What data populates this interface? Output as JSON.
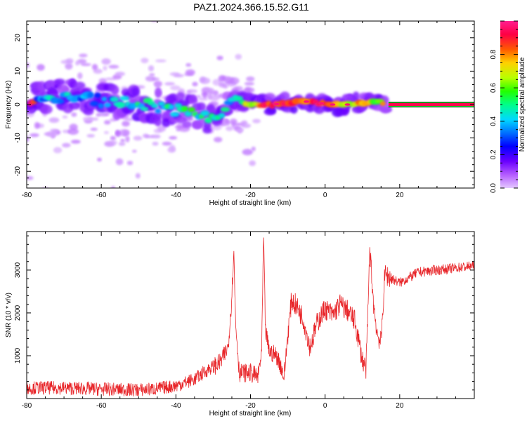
{
  "title": "PAZ1.2024.366.15.52.G11",
  "colors": {
    "trace": "#e8262a",
    "spec_line": "#000000",
    "colorbar": [
      "#e4c8ff",
      "#b45cff",
      "#6a00ff",
      "#0000ff",
      "#0070ff",
      "#00d8ff",
      "#00ff88",
      "#22ff00",
      "#b8ff00",
      "#ffd000",
      "#ff5a00",
      "#ff0044",
      "#ff1f8f"
    ]
  },
  "chart_data": [
    {
      "type": "heatmap",
      "name_hint": "spectrogram",
      "xlabel": "Height of straight line (km)",
      "ylabel": "Frequency (Hz)",
      "xlim": [
        -80,
        40
      ],
      "ylim": [
        -25,
        25
      ],
      "xticks": [
        -80,
        -60,
        -40,
        -20,
        0,
        20
      ],
      "yticks": [
        -20,
        -10,
        0,
        10,
        20
      ],
      "colorbar": {
        "label": "Normalized spectral amplitude",
        "range": [
          0,
          1
        ],
        "ticks": [
          "0.0",
          "0.2",
          "0.4",
          "0.6",
          "0.8"
        ],
        "tick_values": [
          0,
          0.2,
          0.4,
          0.6,
          0.8
        ]
      },
      "ridge": {
        "x": [
          -78,
          -72,
          -66,
          -60,
          -54,
          -48,
          -44,
          -40,
          -36,
          -32,
          -28,
          -26,
          -24,
          -22,
          -18,
          -14,
          -10,
          -6,
          -2,
          2,
          6,
          10,
          14,
          17,
          39
        ],
        "frequency": [
          3,
          2,
          3,
          1,
          0.5,
          0,
          -1,
          -1.5,
          -2.5,
          -3.5,
          -4,
          0.5,
          2,
          0.5,
          0,
          0,
          0.5,
          1,
          0.5,
          0,
          0,
          0.5,
          1,
          0,
          0
        ],
        "amplitude": [
          0.35,
          0.4,
          0.35,
          0.35,
          0.4,
          0.45,
          0.45,
          0.5,
          0.5,
          0.45,
          0.5,
          0.35,
          0.45,
          0.6,
          0.8,
          0.95,
          0.85,
          0.85,
          0.95,
          0.8,
          0.65,
          0.8,
          0.55,
          0.95,
          0.95
        ]
      }
    },
    {
      "type": "line",
      "xlabel": "Height of straight line (km)",
      "ylabel": "SNR (10 * v/v)",
      "xlim": [
        -80,
        40
      ],
      "ylim": [
        0,
        3900
      ],
      "xticks": [
        -80,
        -60,
        -40,
        -20,
        0,
        20
      ],
      "yticks": [
        1000,
        2000,
        3000
      ],
      "series": [
        {
          "x": [
            -80,
            -70,
            -60,
            -50,
            -45,
            -40,
            -35,
            -31,
            -28,
            -26,
            -25,
            -24.5,
            -24,
            -23,
            -20,
            -18,
            -17,
            -16.5,
            -16,
            -15,
            -13,
            -12,
            -11,
            -10,
            -9,
            -8,
            -6,
            -4,
            -2,
            0,
            2,
            4,
            6,
            8,
            10,
            11,
            12,
            13,
            14,
            15,
            16,
            20,
            25,
            30,
            35,
            40
          ],
          "values": [
            250,
            250,
            220,
            200,
            230,
            300,
            450,
            700,
            850,
            1200,
            2400,
            3500,
            1800,
            600,
            600,
            500,
            1100,
            3800,
            1600,
            1100,
            1000,
            800,
            500,
            1500,
            2300,
            2200,
            1900,
            1200,
            1800,
            2100,
            1950,
            2200,
            2050,
            1800,
            900,
            700,
            3500,
            2200,
            1500,
            1300,
            2900,
            2700,
            2950,
            3000,
            3050,
            3100
          ]
        }
      ]
    }
  ]
}
